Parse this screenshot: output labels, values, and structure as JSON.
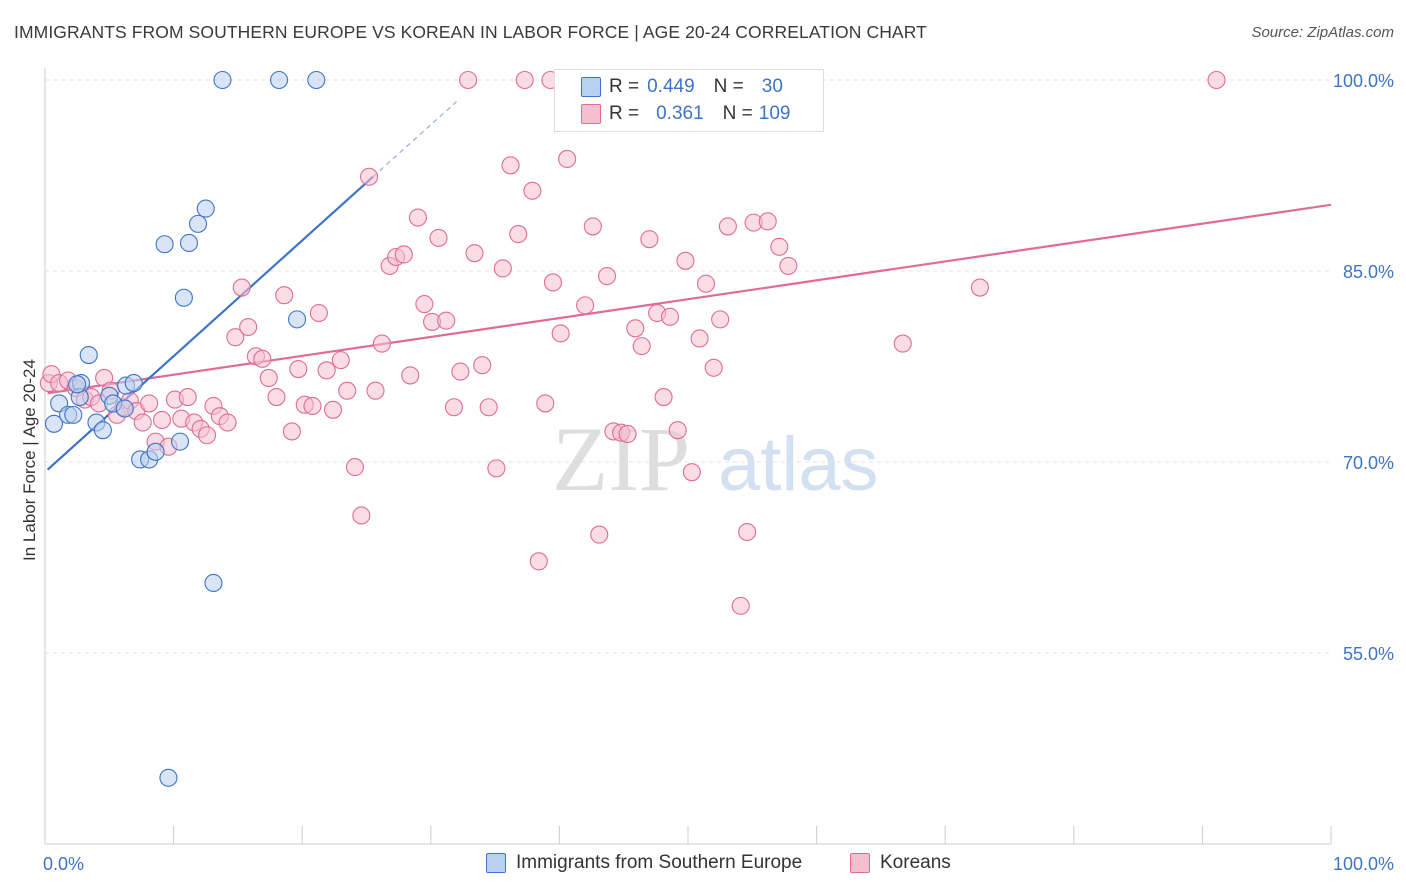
{
  "title": "IMMIGRANTS FROM SOUTHERN EUROPE VS KOREAN IN LABOR FORCE | AGE 20-24 CORRELATION CHART",
  "source": "Source: ZipAtlas.com",
  "watermark": {
    "zip": "ZIP",
    "atlas": "atlas"
  },
  "colors": {
    "blue": "#3d73c9",
    "blue_fill": "#b9d0ef",
    "pink": "#e06b98",
    "pink_fill": "#f5bfd0",
    "axis_text": "#3d73c9",
    "grid": "#e3e3e3"
  },
  "legend_box": {
    "rows": [
      {
        "r_label": "R =",
        "r_value": "0.449",
        "n_label": "N =",
        "n_value": "30",
        "color": "blue"
      },
      {
        "r_label": "R =",
        "r_value": "0.361",
        "n_label": "N =",
        "n_value": "109",
        "color": "pink"
      }
    ]
  },
  "legend_bottom": [
    {
      "label": "Immigrants from Southern Europe",
      "color": "blue"
    },
    {
      "label": "Koreans",
      "color": "pink"
    }
  ],
  "chart_data": {
    "type": "scatter",
    "title": "IMMIGRANTS FROM SOUTHERN EUROPE VS KOREAN IN LABOR FORCE | AGE 20-24 CORRELATION CHART",
    "xlabel": "",
    "ylabel": "In Labor Force | Age 20-24",
    "xlim": [
      0,
      100
    ],
    "ylim": [
      40,
      101
    ],
    "x_tick_labels": [
      "0.0%",
      "100.0%"
    ],
    "y_ticks": [
      55,
      70,
      85,
      100
    ],
    "y_tick_labels": [
      "55.0%",
      "70.0%",
      "85.0%",
      "100.0%"
    ],
    "grid": true,
    "series": [
      {
        "name": "Immigrants from Southern Europe",
        "color": "blue",
        "r": 0.449,
        "n": 30,
        "trend": {
          "x0": 0.2,
          "y0": 69.4,
          "x1": 25.5,
          "y1": 92.4,
          "dash_x1": 32.0,
          "dash_y1": 98.3
        },
        "points": [
          [
            0.7,
            73.0
          ],
          [
            1.1,
            74.6
          ],
          [
            1.8,
            73.7
          ],
          [
            2.2,
            73.7
          ],
          [
            3.4,
            78.4
          ],
          [
            2.8,
            76.2
          ],
          [
            4.0,
            73.1
          ],
          [
            2.7,
            75.1
          ],
          [
            5.0,
            75.2
          ],
          [
            6.3,
            76.0
          ],
          [
            5.3,
            74.6
          ],
          [
            6.9,
            76.2
          ],
          [
            6.2,
            74.2
          ],
          [
            4.5,
            72.5
          ],
          [
            7.4,
            70.2
          ],
          [
            8.1,
            70.2
          ],
          [
            8.6,
            70.8
          ],
          [
            10.5,
            71.6
          ],
          [
            10.8,
            82.9
          ],
          [
            11.2,
            87.2
          ],
          [
            11.9,
            88.7
          ],
          [
            12.5,
            89.9
          ],
          [
            9.3,
            87.1
          ],
          [
            13.8,
            100.0
          ],
          [
            18.2,
            100.0
          ],
          [
            21.1,
            100.0
          ],
          [
            19.6,
            81.2
          ],
          [
            13.1,
            60.5
          ],
          [
            9.6,
            45.2
          ],
          [
            2.5,
            76.1
          ]
        ]
      },
      {
        "name": "Koreans",
        "color": "pink",
        "r": 0.361,
        "n": 109,
        "trend": {
          "x0": 0.2,
          "y0": 75.4,
          "x1": 100.0,
          "y1": 90.2
        },
        "points": [
          [
            0.3,
            76.2
          ],
          [
            0.5,
            76.9
          ],
          [
            1.1,
            76.2
          ],
          [
            1.8,
            76.4
          ],
          [
            2.4,
            75.8
          ],
          [
            3.1,
            74.9
          ],
          [
            3.6,
            75.1
          ],
          [
            4.2,
            74.6
          ],
          [
            4.6,
            76.6
          ],
          [
            5.1,
            75.6
          ],
          [
            5.6,
            73.7
          ],
          [
            6.1,
            74.3
          ],
          [
            6.6,
            74.8
          ],
          [
            7.1,
            74.0
          ],
          [
            7.6,
            73.1
          ],
          [
            8.1,
            74.6
          ],
          [
            8.6,
            71.6
          ],
          [
            9.1,
            73.3
          ],
          [
            9.6,
            71.2
          ],
          [
            10.1,
            74.9
          ],
          [
            10.6,
            73.4
          ],
          [
            11.1,
            75.1
          ],
          [
            11.6,
            73.1
          ],
          [
            12.1,
            72.6
          ],
          [
            12.6,
            72.1
          ],
          [
            13.1,
            74.4
          ],
          [
            13.6,
            73.6
          ],
          [
            14.2,
            73.1
          ],
          [
            14.8,
            79.8
          ],
          [
            15.3,
            83.7
          ],
          [
            15.8,
            80.6
          ],
          [
            16.4,
            78.3
          ],
          [
            16.9,
            78.1
          ],
          [
            17.4,
            76.6
          ],
          [
            18.0,
            75.1
          ],
          [
            18.6,
            83.1
          ],
          [
            19.2,
            72.4
          ],
          [
            19.7,
            77.3
          ],
          [
            20.2,
            74.5
          ],
          [
            20.8,
            74.4
          ],
          [
            21.3,
            81.7
          ],
          [
            21.9,
            77.2
          ],
          [
            22.4,
            74.1
          ],
          [
            23.0,
            78.0
          ],
          [
            23.5,
            75.6
          ],
          [
            24.1,
            69.6
          ],
          [
            24.6,
            65.8
          ],
          [
            25.2,
            92.4
          ],
          [
            25.7,
            75.6
          ],
          [
            26.2,
            79.3
          ],
          [
            26.8,
            85.4
          ],
          [
            27.3,
            86.1
          ],
          [
            27.9,
            86.3
          ],
          [
            28.4,
            76.8
          ],
          [
            29.0,
            89.2
          ],
          [
            29.5,
            82.4
          ],
          [
            30.1,
            81.0
          ],
          [
            30.6,
            87.6
          ],
          [
            31.2,
            81.1
          ],
          [
            31.8,
            74.3
          ],
          [
            32.3,
            77.1
          ],
          [
            32.9,
            100.0
          ],
          [
            33.4,
            86.4
          ],
          [
            34.0,
            77.6
          ],
          [
            34.5,
            74.3
          ],
          [
            35.1,
            69.5
          ],
          [
            35.6,
            85.2
          ],
          [
            36.2,
            93.3
          ],
          [
            36.8,
            87.9
          ],
          [
            37.3,
            100.0
          ],
          [
            37.9,
            91.3
          ],
          [
            38.4,
            62.2
          ],
          [
            38.9,
            74.6
          ],
          [
            39.5,
            84.1
          ],
          [
            40.1,
            80.1
          ],
          [
            39.3,
            100.0
          ],
          [
            40.6,
            93.8
          ],
          [
            42.0,
            82.3
          ],
          [
            42.6,
            88.5
          ],
          [
            43.1,
            64.3
          ],
          [
            43.7,
            84.6
          ],
          [
            44.2,
            72.4
          ],
          [
            44.8,
            72.3
          ],
          [
            45.3,
            72.2
          ],
          [
            45.9,
            80.5
          ],
          [
            46.4,
            79.1
          ],
          [
            47.0,
            87.5
          ],
          [
            47.6,
            81.7
          ],
          [
            48.1,
            75.1
          ],
          [
            48.6,
            81.4
          ],
          [
            49.2,
            72.5
          ],
          [
            49.8,
            85.8
          ],
          [
            50.3,
            69.2
          ],
          [
            50.9,
            79.7
          ],
          [
            51.4,
            84.0
          ],
          [
            52.0,
            77.4
          ],
          [
            52.5,
            81.2
          ],
          [
            53.1,
            88.5
          ],
          [
            54.1,
            58.7
          ],
          [
            54.6,
            64.5
          ],
          [
            55.1,
            88.8
          ],
          [
            56.2,
            88.9
          ],
          [
            57.1,
            86.9
          ],
          [
            57.8,
            85.4
          ],
          [
            66.7,
            79.3
          ],
          [
            72.7,
            83.7
          ],
          [
            91.1,
            100.0
          ]
        ]
      }
    ]
  }
}
